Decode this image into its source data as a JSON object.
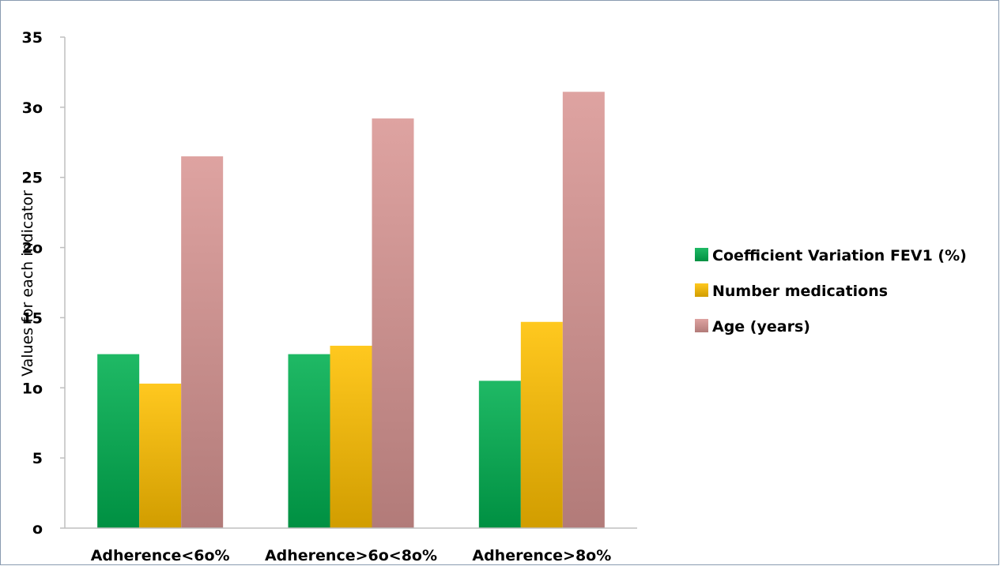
{
  "chart_data": {
    "type": "bar",
    "title": "",
    "xlabel": "",
    "ylabel": "Values for each indicator",
    "categories": [
      "Adherence<6o%",
      "Adherence>6o<8o%",
      "Adherence>8o%"
    ],
    "series": [
      {
        "name": "Coefficient Variation FEV1 (%)",
        "color": "#00b050",
        "values": [
          12.4,
          12.4,
          10.5
        ]
      },
      {
        "name": "Number medications",
        "color": "#ffc000",
        "values": [
          10.3,
          13.0,
          14.7
        ]
      },
      {
        "name": "Age (years)",
        "color": "#d99694",
        "values": [
          26.5,
          29.2,
          31.1
        ]
      }
    ],
    "ylim": [
      0,
      35
    ],
    "yticks": [
      "o",
      "5",
      "1o",
      "15",
      "2o",
      "25",
      "3o",
      "35"
    ],
    "yticks_values": [
      0,
      5,
      10,
      15,
      20,
      25,
      30,
      35
    ],
    "grid": false,
    "legend_position": "right"
  }
}
